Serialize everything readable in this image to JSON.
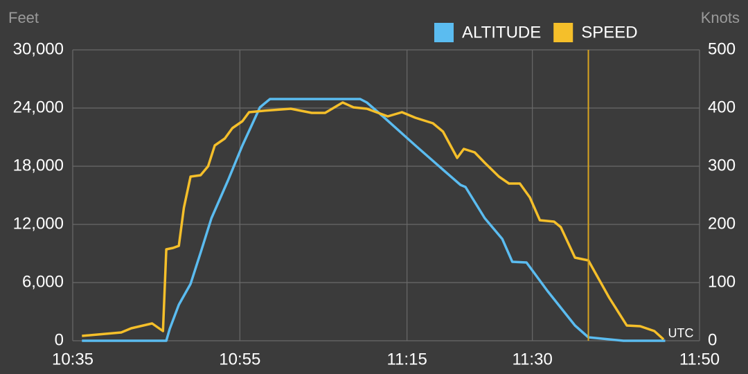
{
  "chart_data": {
    "type": "line",
    "y_label": "Feet",
    "y2_label": "Knots",
    "x_note": "UTC",
    "xlim": [
      635,
      710
    ],
    "xticks": [
      {
        "value": 635,
        "label": "10:35"
      },
      {
        "value": 655,
        "label": "10:55"
      },
      {
        "value": 675,
        "label": "11:15"
      },
      {
        "value": 690,
        "label": "11:30"
      },
      {
        "value": 710,
        "label": "11:50"
      }
    ],
    "ylim": [
      0,
      30000
    ],
    "yticks": [
      {
        "value": 0,
        "label": "0"
      },
      {
        "value": 6000,
        "label": "6,000"
      },
      {
        "value": 12000,
        "label": "12,000"
      },
      {
        "value": 18000,
        "label": "18,000"
      },
      {
        "value": 24000,
        "label": "24,000"
      },
      {
        "value": 30000,
        "label": "30,000"
      }
    ],
    "y2lim": [
      0,
      500
    ],
    "y2ticks": [
      0,
      100,
      200,
      300,
      400,
      500
    ],
    "grid": true,
    "marker_x": 696.7,
    "marker_color": "#d9a520",
    "series": [
      {
        "name": "ALTITUDE",
        "color": "#5bbcf0",
        "x": [
          636.1,
          646.2,
          646.6,
          647.7,
          649.1,
          650.3,
          651.6,
          653.6,
          655.3,
          657.4,
          658.6,
          669.4,
          670.2,
          672.3,
          676.0,
          679.3,
          681.4,
          682.0,
          684.3,
          686.4,
          687.6,
          689.3,
          691.8,
          695.1,
          696.7,
          700.9,
          705.9
        ],
        "values": [
          0,
          0,
          1214,
          3714,
          5857,
          9071,
          12643,
          16571,
          20143,
          24071,
          24929,
          24929,
          24571,
          23000,
          20143,
          17643,
          16071,
          15857,
          12643,
          10500,
          8143,
          8071,
          5143,
          1571,
          357,
          0,
          0
        ]
      },
      {
        "name": "SPEED",
        "color": "#f5bf2a",
        "axis": "y2",
        "x": [
          636.1,
          640.8,
          642.0,
          644.5,
          645.8,
          646.2,
          647.0,
          647.7,
          648.3,
          649.1,
          650.3,
          651.2,
          652.0,
          653.2,
          654.1,
          655.3,
          656.1,
          657.8,
          661.1,
          663.6,
          665.2,
          667.3,
          668.6,
          670.2,
          672.7,
          674.4,
          676.0,
          678.1,
          679.3,
          681.0,
          681.8,
          683.1,
          684.3,
          686.0,
          687.2,
          688.5,
          689.7,
          690.9,
          692.6,
          693.4,
          695.1,
          696.7,
          699.2,
          701.3,
          702.9,
          704.6,
          705.7
        ],
        "values": [
          8.3,
          14.3,
          21.4,
          29.8,
          16.7,
          157.1,
          159.5,
          163.1,
          228.6,
          282.1,
          284.5,
          300,
          335.7,
          347.6,
          365.5,
          377.4,
          392.9,
          395.2,
          398.8,
          391.7,
          391.7,
          409.5,
          401.2,
          398.8,
          385.7,
          392.9,
          383.3,
          373.8,
          359.5,
          314.3,
          329.8,
          323.8,
          306,
          282.1,
          270.2,
          270.2,
          246.4,
          207.1,
          204.8,
          195.2,
          142.9,
          138.1,
          73.8,
          26.2,
          25,
          16.7,
          2.4
        ]
      }
    ]
  }
}
